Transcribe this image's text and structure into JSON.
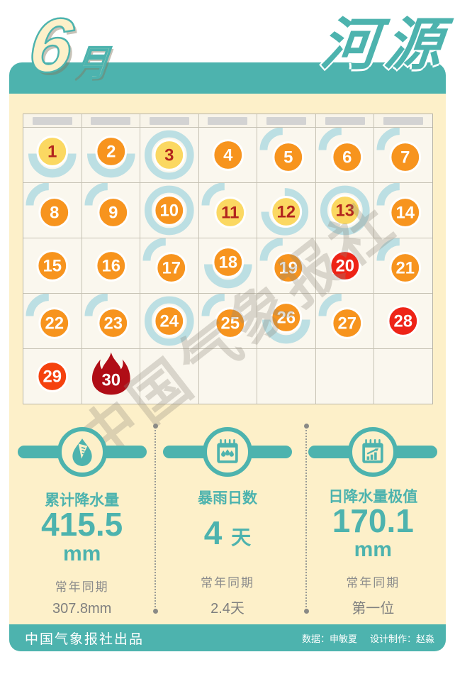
{
  "title": {
    "month_number": "6",
    "month_suffix": "月",
    "city": "河源"
  },
  "watermark": "中国气象报社",
  "calendar": {
    "weekday_placeholder_count": 7,
    "trailing_empty_cells": 5,
    "days": [
      {
        "day": "1",
        "style": "yellow",
        "rain_arc": "bowl"
      },
      {
        "day": "2",
        "style": "orange",
        "rain_arc": "bowl"
      },
      {
        "day": "3",
        "style": "yellow",
        "rain_arc": "ring"
      },
      {
        "day": "4",
        "style": "orange",
        "rain_arc": "none"
      },
      {
        "day": "5",
        "style": "orange",
        "rain_arc": "quarter"
      },
      {
        "day": "6",
        "style": "orange",
        "rain_arc": "quarter"
      },
      {
        "day": "7",
        "style": "orange",
        "rain_arc": "quarter"
      },
      {
        "day": "8",
        "style": "orange",
        "rain_arc": "quarter"
      },
      {
        "day": "9",
        "style": "orange",
        "rain_arc": "quarter"
      },
      {
        "day": "10",
        "style": "orange",
        "rain_arc": "ring"
      },
      {
        "day": "11",
        "style": "yellow",
        "rain_arc": "quarter"
      },
      {
        "day": "12",
        "style": "yellow",
        "rain_arc": "three_quarter"
      },
      {
        "day": "13",
        "style": "yellow",
        "rain_arc": "ring"
      },
      {
        "day": "14",
        "style": "orange",
        "rain_arc": "quarter"
      },
      {
        "day": "15",
        "style": "orange",
        "rain_arc": "none"
      },
      {
        "day": "16",
        "style": "orange",
        "rain_arc": "none"
      },
      {
        "day": "17",
        "style": "orange",
        "rain_arc": "quarter"
      },
      {
        "day": "18",
        "style": "orange",
        "rain_arc": "bowl"
      },
      {
        "day": "19",
        "style": "orange",
        "rain_arc": "quarter"
      },
      {
        "day": "20",
        "style": "red",
        "rain_arc": "none"
      },
      {
        "day": "21",
        "style": "orange",
        "rain_arc": "quarter"
      },
      {
        "day": "22",
        "style": "orange",
        "rain_arc": "quarter"
      },
      {
        "day": "23",
        "style": "orange",
        "rain_arc": "quarter"
      },
      {
        "day": "24",
        "style": "orange",
        "rain_arc": "ring"
      },
      {
        "day": "25",
        "style": "orange",
        "rain_arc": "quarter"
      },
      {
        "day": "26",
        "style": "orange",
        "rain_arc": "bowl"
      },
      {
        "day": "27",
        "style": "orange",
        "rain_arc": "quarter"
      },
      {
        "day": "28",
        "style": "red",
        "rain_arc": "none"
      },
      {
        "day": "29",
        "style": "red_orange",
        "rain_arc": "none"
      },
      {
        "day": "30",
        "style": "flame",
        "rain_arc": "none"
      }
    ]
  },
  "stats": [
    {
      "icon": "rain-gauge-icon",
      "label": "累计降水量",
      "value": "415.5",
      "unit": "mm",
      "unit_position": "below",
      "normal_label": "常年同期",
      "normal_value": "307.8mm"
    },
    {
      "icon": "rainstorm-calendar-icon",
      "label": "暴雨日数",
      "value": "4",
      "unit": "天",
      "unit_position": "inline",
      "normal_label": "常年同期",
      "normal_value": "2.4天"
    },
    {
      "icon": "record-chart-icon",
      "label": "日降水量极值",
      "value": "170.1",
      "unit": "mm",
      "unit_position": "below",
      "normal_label": "常年同期",
      "normal_value": "第一位"
    }
  ],
  "footer": {
    "publisher": "中国气象报社出品",
    "data_credit": "数据：申敏夏",
    "design_credit": "设计制作：赵淼"
  },
  "colors": {
    "teal": "#4db3ae",
    "cream": "#fdf0c9",
    "cell_bg": "#faf7ee",
    "rain_arc": "#bcdfe3",
    "orange": "#f7941e",
    "yellow": "#fbd862",
    "yellow_day_text": "#b3251e",
    "red": "#ee2417",
    "red_orange": "#f5420e",
    "flame": "#b00d16",
    "header_bar_gray": "#d3d3d3",
    "secondary_text": "#8c8c8c"
  }
}
